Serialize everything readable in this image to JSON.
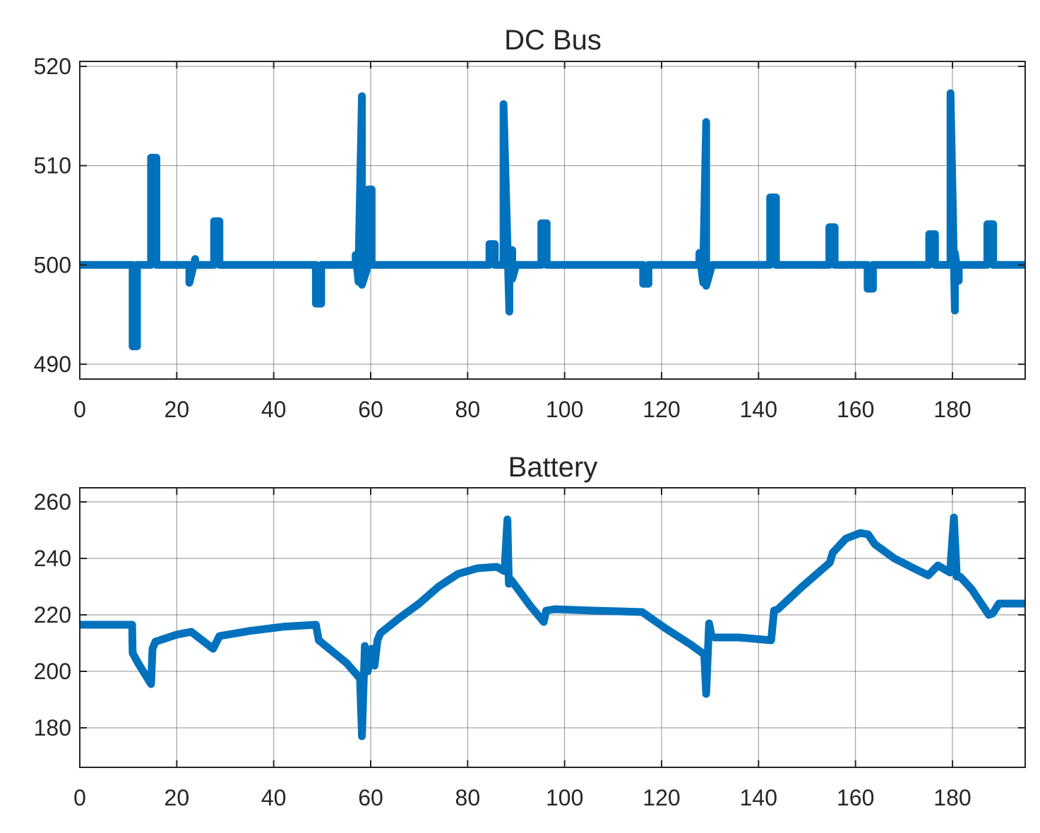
{
  "figure": {
    "line_color": "#0072BD",
    "grid": true
  },
  "chart_data": [
    {
      "type": "line",
      "title": "DC Bus",
      "xlabel": "",
      "ylabel": "",
      "xlim": [
        0,
        195
      ],
      "ylim": [
        488.5,
        520.5
      ],
      "xticks": [
        0,
        20,
        40,
        60,
        80,
        100,
        120,
        140,
        160,
        180
      ],
      "yticks": [
        490,
        500,
        510,
        520
      ],
      "series": [
        {
          "color": "#0072BD",
          "x": [
            0,
            10.9,
            10.9,
            11.8,
            11.8,
            14.7,
            14.7,
            15.8,
            15.8,
            22.6,
            22.6,
            23.8,
            23.8,
            27.7,
            27.7,
            28.8,
            28.8,
            48.7,
            48.7,
            49.8,
            49.8,
            56.9,
            56.9,
            57.5,
            57.5,
            58.2,
            58.2,
            59.5,
            59.5,
            60.2,
            60.2,
            61.5,
            61.5,
            84.5,
            84.5,
            85.6,
            85.6,
            87.4,
            87.4,
            88.6,
            88.6,
            89.2,
            89.2,
            90,
            90,
            95.2,
            95.2,
            96.3,
            96.3,
            116.2,
            116.2,
            117.3,
            117.3,
            127.8,
            127.8,
            128.6,
            128.6,
            129.2,
            129.2,
            130.4,
            130.4,
            142.4,
            142.4,
            143.6,
            143.6,
            154.6,
            154.6,
            155.7,
            155.7,
            162.5,
            162.5,
            163.6,
            163.6,
            175.2,
            175.2,
            176.4,
            176.4,
            179.6,
            179.6,
            180.5,
            180.5,
            181.3,
            181.3,
            182,
            182,
            187.2,
            187.2,
            188.4,
            188.4,
            195
          ],
          "y": [
            500,
            500,
            491.8,
            491.8,
            500,
            500,
            510.8,
            510.8,
            500,
            500,
            498.2,
            500.6,
            500,
            500,
            504.4,
            504.4,
            500,
            500,
            496.1,
            496.1,
            500,
            500,
            501,
            498.3,
            500,
            517,
            498,
            500,
            507.6,
            507.6,
            500,
            500,
            500,
            500,
            502.1,
            502.1,
            500,
            500,
            516.2,
            495.3,
            500,
            501.5,
            498.6,
            500,
            500,
            500,
            504.2,
            504.2,
            500,
            500,
            498.1,
            498.1,
            500,
            500,
            501.2,
            498.2,
            500,
            514.4,
            497.9,
            500,
            500,
            500,
            506.8,
            506.8,
            500,
            500,
            503.8,
            503.8,
            500,
            500,
            497.6,
            497.6,
            500,
            500,
            503.1,
            503.1,
            500,
            500,
            517.3,
            495.4,
            501.2,
            498.4,
            500,
            500,
            500,
            500,
            504.1,
            504.1,
            500,
            500
          ]
        }
      ]
    },
    {
      "type": "line",
      "title": "Battery",
      "xlabel": "",
      "ylabel": "",
      "xlim": [
        0,
        195
      ],
      "ylim": [
        166,
        265
      ],
      "xticks": [
        0,
        20,
        40,
        60,
        80,
        100,
        120,
        140,
        160,
        180
      ],
      "yticks": [
        180,
        200,
        220,
        240,
        260
      ],
      "series": [
        {
          "color": "#0072BD",
          "x": [
            0,
            10.8,
            10.9,
            12,
            14.7,
            15,
            15.6,
            20,
            23,
            27.5,
            28.8,
            35,
            42,
            48.7,
            49.3,
            55,
            57.8,
            58.2,
            58.8,
            59.4,
            60.2,
            60.8,
            61.4,
            62,
            66,
            70,
            74,
            78,
            82,
            86,
            87.6,
            88.2,
            88.5,
            88.9,
            90,
            93,
            95.7,
            96.2,
            98,
            106,
            116,
            121,
            126,
            128.8,
            129.2,
            129.8,
            130.3,
            131,
            136,
            142.6,
            143.2,
            144,
            149,
            154.7,
            155.3,
            158,
            161,
            162.6,
            164,
            168,
            172,
            175,
            177,
            179.5,
            180.3,
            180.9,
            181.6,
            184,
            187.5,
            188.3,
            189.6,
            195
          ],
          "y": [
            216.5,
            216.5,
            206.5,
            203,
            195.5,
            208,
            210.5,
            213,
            214,
            208,
            212.5,
            214.3,
            215.8,
            216.5,
            211,
            203,
            197.5,
            177,
            209,
            200,
            208,
            202,
            211,
            213.5,
            219,
            224,
            230,
            234.5,
            236.5,
            237,
            235.5,
            253.8,
            231,
            232.5,
            230,
            223,
            217.5,
            221.5,
            222,
            221.5,
            221,
            215,
            209.5,
            206,
            192,
            217,
            212.5,
            212,
            212,
            211,
            221.5,
            222,
            230,
            238.5,
            242,
            247,
            249,
            248.5,
            245,
            240,
            236.5,
            234,
            237.5,
            235,
            254.5,
            233.5,
            233.5,
            229,
            220,
            220.5,
            224,
            224
          ]
        }
      ]
    }
  ]
}
